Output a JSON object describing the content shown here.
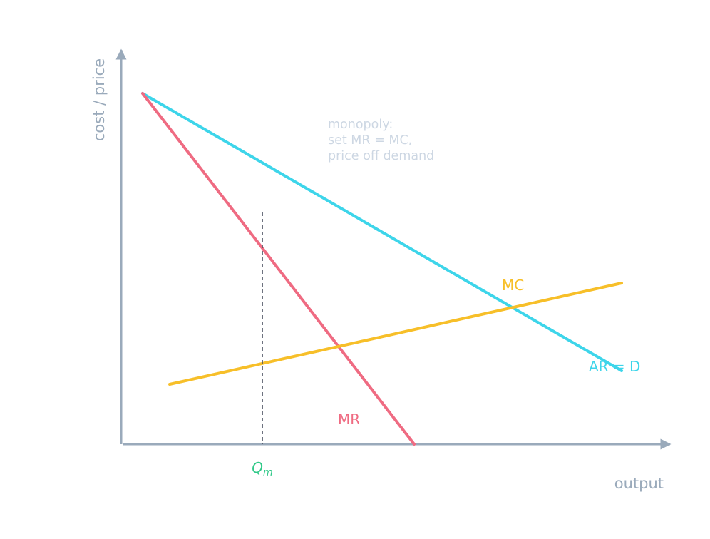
{
  "axes": {
    "y_label": "cost / price",
    "x_label": "output"
  },
  "curves": {
    "demand": {
      "label": "AR = D",
      "color": "#3dd5ea"
    },
    "mr": {
      "label": "MR",
      "color": "#ef6b82"
    },
    "mc": {
      "label": "MC",
      "color": "#f7bf29"
    }
  },
  "annotation": {
    "lines": [
      "monopoly:",
      "set MR = MC,",
      "price off demand"
    ]
  },
  "quantity_marker": {
    "label_main": "Q",
    "label_sub": "m",
    "color": "#31c989"
  },
  "colors": {
    "axis": "#9aaabb",
    "dashed_guide": "#4a5060",
    "note_text": "#cdd7e3"
  }
}
